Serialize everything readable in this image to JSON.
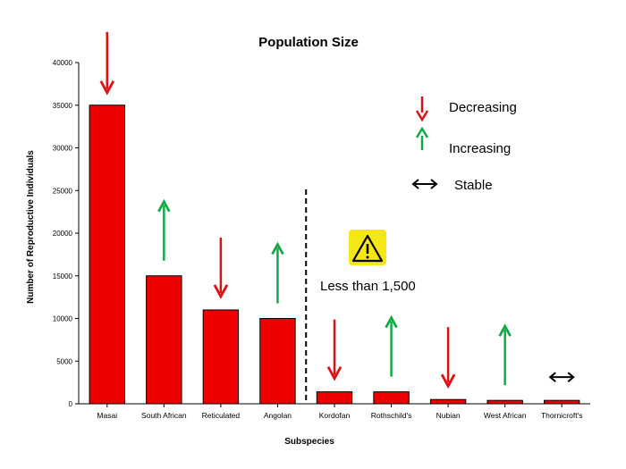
{
  "chart_data": {
    "type": "bar",
    "title": "Population Size",
    "xlabel": "Subspecies",
    "ylabel": "Number of Reproductive Individuals",
    "ylim": [
      0,
      40000
    ],
    "yticks": [
      0,
      5000,
      10000,
      15000,
      20000,
      25000,
      30000,
      35000,
      40000
    ],
    "categories": [
      "Masai",
      "South African",
      "Reticulated",
      "Angolan",
      "Kordofan",
      "Rothschild's",
      "Nubian",
      "West African",
      "Thornicroft's"
    ],
    "values": [
      35000,
      15000,
      11000,
      10000,
      1400,
      1400,
      500,
      400,
      400
    ],
    "trends": [
      "decreasing",
      "increasing",
      "decreasing",
      "increasing",
      "decreasing",
      "increasing",
      "decreasing",
      "increasing",
      "stable"
    ],
    "bar_color": "#ee0000",
    "legend": [
      {
        "label": "Decreasing",
        "color": "#dd1111",
        "symbol": "down-arrow"
      },
      {
        "label": "Increasing",
        "color": "#11aa44",
        "symbol": "up-arrow"
      },
      {
        "label": "Stable",
        "color": "#000000",
        "symbol": "double-arrow"
      }
    ],
    "annotation": {
      "text": "Less than 1,500",
      "icon": "warning-icon",
      "icon_color": "#f5e616"
    },
    "divider_after_index": 3
  }
}
